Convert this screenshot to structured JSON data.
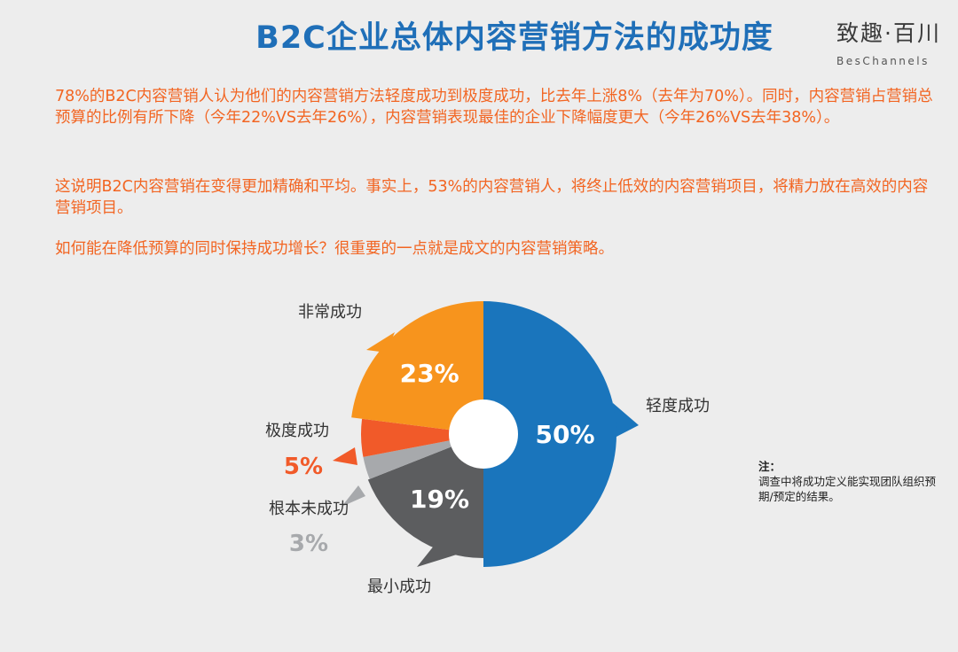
{
  "header": {
    "title": "B2C企业总体内容营销方法的成功度",
    "logo_text": "致趣·百川",
    "logo_sub": "BesChannels"
  },
  "paragraphs": [
    "78%的B2C内容营销人认为他们的内容营销方法轻度成功到极度成功，比去年上涨8%（去年为70%）。同时，内容营销占营销总预算的比例有所下降（今年22%VS去年26%），内容营销表现最佳的企业下降幅度更大（今年26%VS去年38%）。",
    "这说明B2C内容营销在变得更加精确和平均。事实上，53%的内容营销人，将终止低效的内容营销项目，将精力放在高效的内容营销项目。",
    "如何能在降低预算的同时保持成功增长？很重要的一点就是成文的内容营销策略。"
  ],
  "note": {
    "title": "注：",
    "text": "调查中将成功定义能实现团队组织预期/预定的结果。"
  },
  "chart_data": {
    "type": "pie",
    "slices": [
      {
        "label": "轻度成功",
        "value": 50,
        "value_label": "50%",
        "color": "#1a75bc"
      },
      {
        "label": "最小成功",
        "value": 19,
        "value_label": "19%",
        "color": "#5c5d5f"
      },
      {
        "label": "根本未成功",
        "value": 3,
        "value_label": "3%",
        "color": "#a7a9ac"
      },
      {
        "label": "极度成功",
        "value": 5,
        "value_label": "5%",
        "color": "#f15a29"
      },
      {
        "label": "非常成功",
        "value": 23,
        "value_label": "23%",
        "color": "#f7941d"
      }
    ]
  }
}
